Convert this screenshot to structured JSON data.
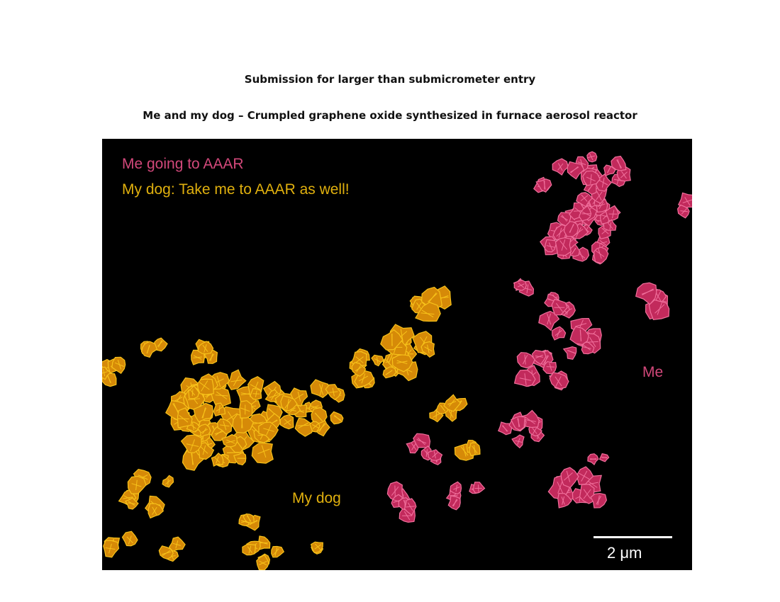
{
  "header": {
    "title": "Submission for larger than submicrometer entry",
    "subtitle": "Me and my dog – Crumpled graphene oxide synthesized in furnace aerosol reactor"
  },
  "micrograph": {
    "labels": {
      "me_going": "Me going to AAAR",
      "my_dog_caption": "My dog: Take me to AAAR as well!",
      "me": "Me",
      "my_dog": "My dog"
    },
    "scale_bar": "2 μm",
    "colors": {
      "me": "#d2487a",
      "dog": "#e0b00e",
      "me_particle": "#c22a5c",
      "dog_particle": "#d68a08",
      "dog_particle_highlight": "#f7c21a",
      "me_particle_highlight": "#f0709c",
      "background": "#000000"
    }
  }
}
